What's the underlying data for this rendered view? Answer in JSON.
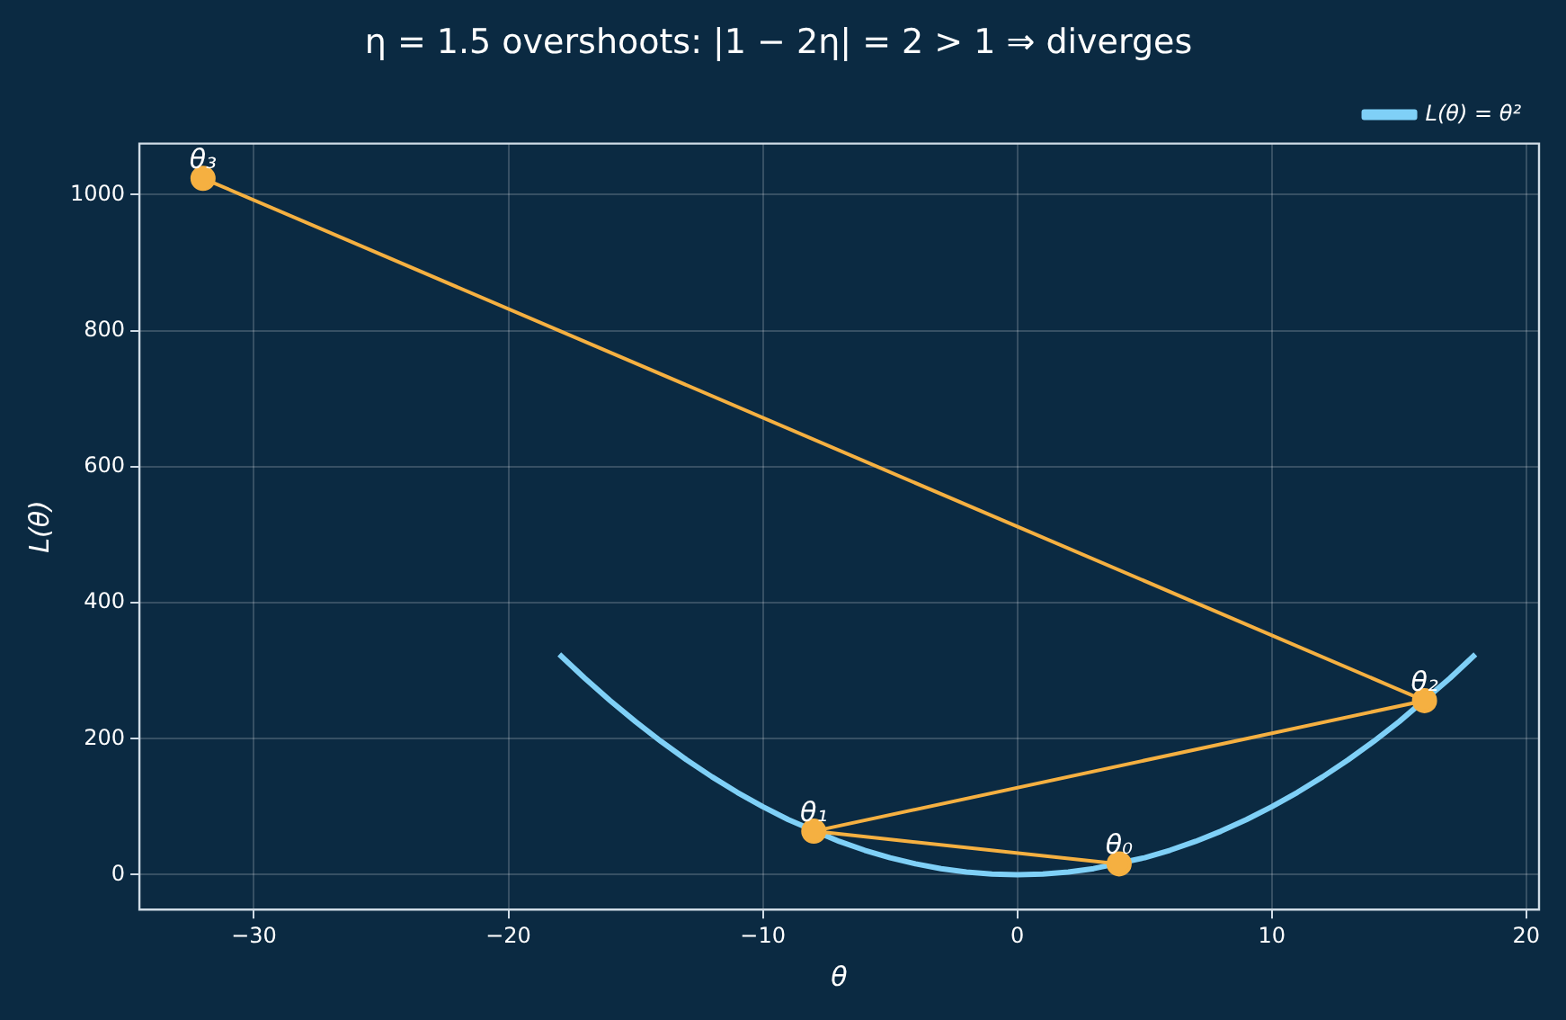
{
  "chart_data": {
    "type": "line",
    "title": "η = 1.5 overshoots: |1 − 2η| = 2 > 1 ⇒ diverges",
    "xlabel": "θ",
    "ylabel": "L(θ)",
    "series": [
      {
        "name": "L(θ) = θ²",
        "color": "#7fd0f7",
        "marker": "none",
        "x": [
          -18,
          -17,
          -16,
          -15,
          -14,
          -13,
          -12,
          -11,
          -10,
          -9,
          -7,
          -6,
          -5,
          -4,
          -3,
          -2,
          -1,
          0,
          1,
          2,
          3,
          5,
          6,
          7,
          8,
          9,
          10,
          11,
          12,
          13,
          14,
          15,
          17,
          18
        ],
        "values": [
          324,
          289,
          256,
          225,
          196,
          169,
          144,
          121,
          100,
          81,
          49,
          36,
          25,
          16,
          9,
          4,
          1,
          0,
          1,
          4,
          9,
          25,
          36,
          49,
          64,
          81,
          100,
          121,
          144,
          169,
          196,
          225,
          289,
          324
        ]
      },
      {
        "color": "#f5b041",
        "marker": "circle",
        "x": [
          4,
          -8,
          16,
          -32
        ],
        "values": [
          16,
          64,
          256,
          1024
        ]
      }
    ],
    "annotations": [
      {
        "text": "θ₀",
        "x": 4,
        "y": 16
      },
      {
        "text": "θ₁",
        "x": -8,
        "y": 64
      },
      {
        "text": "θ₂",
        "x": 16,
        "y": 256
      },
      {
        "text": "θ₃",
        "x": -32,
        "y": 1024
      }
    ],
    "xlim": [
      -34.5,
      20.5
    ],
    "xticks": [
      -30,
      -20,
      -10,
      0,
      10,
      20
    ],
    "ylim": [
      -51.2,
      1075.2
    ],
    "yticks": [
      0,
      200,
      400,
      600,
      800,
      1000
    ],
    "grid": true,
    "legend": "top right"
  }
}
